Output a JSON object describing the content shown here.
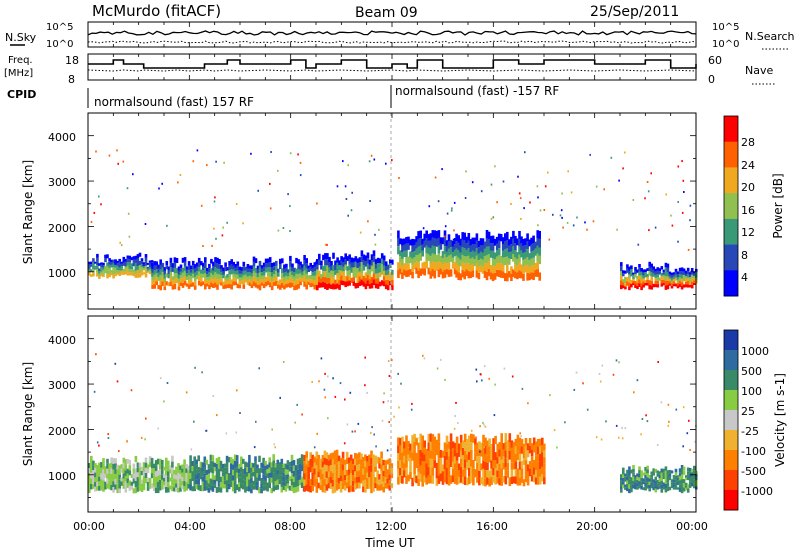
{
  "header": {
    "station": "McMurdo (fitACF)",
    "beam": "Beam 09",
    "date": "25/Sep/2011"
  },
  "nsky_panel": {
    "left_label": "N.Sky",
    "right_label": "N.Search",
    "left_ticks": [
      "10^5",
      "10^0"
    ],
    "right_ticks": [
      "10^5",
      "10^0"
    ]
  },
  "freq_panel": {
    "left_label_1": "Freq.",
    "left_label_2": "[MHz]",
    "right_label": "Nave",
    "left_ticks": [
      "18",
      "8"
    ],
    "right_ticks": [
      "60",
      "0"
    ]
  },
  "cpid": {
    "label": "CPID",
    "segments": [
      {
        "start_hour": 0,
        "text": "normalsound (fast) 157 RF"
      },
      {
        "start_hour": 12,
        "text": "normalsound (fast) -157 RF"
      }
    ]
  },
  "x_axis": {
    "label": "Time UT",
    "ticks": [
      "00:00",
      "04:00",
      "08:00",
      "12:00",
      "16:00",
      "20:00",
      "00:00"
    ]
  },
  "power_panel": {
    "ylabel": "Slant Range [km]",
    "yticks": [
      "4000",
      "3000",
      "2000",
      "1000"
    ],
    "colorbar_label": "Power [dB]",
    "colorbar_ticks": [
      "28",
      "24",
      "20",
      "16",
      "12",
      "8",
      "4"
    ],
    "colors": [
      "#0000ff",
      "#2848b8",
      "#3a9a78",
      "#90c050",
      "#f0a820",
      "#ff6000",
      "#ff0000"
    ]
  },
  "velocity_panel": {
    "ylabel": "Slant Range [km]",
    "yticks": [
      "4000",
      "3000",
      "2000",
      "1000"
    ],
    "colorbar_label": "Velocity [m s-1]",
    "colorbar_ticks": [
      "1000",
      "500",
      "100",
      "25",
      "-25",
      "-100",
      "-500",
      "-1000"
    ],
    "colors": [
      "#1a3aa8",
      "#2f6aa0",
      "#3a8a6a",
      "#88cc44",
      "#c8c8c8",
      "#f0b030",
      "#ff8000",
      "#ff4000",
      "#ff0000"
    ]
  },
  "chart_data": [
    {
      "type": "heatmap",
      "title": "Power",
      "xlabel": "Time UT",
      "ylabel": "Slant Range [km]",
      "xlim": [
        0,
        24
      ],
      "ylim": [
        180,
        4500
      ],
      "colorbar": "Power [dB]",
      "colorbar_range": [
        0,
        32
      ],
      "bands": [
        {
          "x0": 0.0,
          "x1": 2.5,
          "lower_km": 900,
          "upper_km": 1300,
          "level_dB": 20
        },
        {
          "x0": 2.5,
          "x1": 6.5,
          "lower_km": 650,
          "upper_km": 1200,
          "level_dB": 24
        },
        {
          "x0": 6.5,
          "x1": 9.0,
          "lower_km": 650,
          "upper_km": 1250,
          "level_dB": 24
        },
        {
          "x0": 9.0,
          "x1": 12.0,
          "lower_km": 650,
          "upper_km": 1350,
          "level_dB": 28
        },
        {
          "x0": 12.2,
          "x1": 14.5,
          "lower_km": 900,
          "upper_km": 1800,
          "level_dB": 24
        },
        {
          "x0": 14.5,
          "x1": 17.8,
          "lower_km": 850,
          "upper_km": 1800,
          "level_dB": 24
        },
        {
          "x0": 21.0,
          "x1": 24.0,
          "lower_km": 650,
          "upper_km": 1100,
          "level_dB": 28
        }
      ]
    },
    {
      "type": "heatmap",
      "title": "Velocity",
      "xlabel": "Time UT",
      "ylabel": "Slant Range [km]",
      "xlim": [
        0,
        24
      ],
      "ylim": [
        180,
        4500
      ],
      "colorbar": "Velocity [m s-1]",
      "colorbar_range": [
        -1000,
        1000
      ],
      "bands": [
        {
          "x0": 0.0,
          "x1": 4.0,
          "lower_km": 650,
          "upper_km": 1300,
          "velocity": 100
        },
        {
          "x0": 4.0,
          "x1": 8.5,
          "lower_km": 650,
          "upper_km": 1350,
          "velocity": 300
        },
        {
          "x0": 8.5,
          "x1": 12.0,
          "lower_km": 650,
          "upper_km": 1450,
          "velocity": -100
        },
        {
          "x0": 12.2,
          "x1": 18.0,
          "lower_km": 800,
          "upper_km": 1800,
          "velocity": -100
        },
        {
          "x0": 21.0,
          "x1": 24.0,
          "lower_km": 650,
          "upper_km": 1100,
          "velocity": 300
        }
      ]
    }
  ]
}
